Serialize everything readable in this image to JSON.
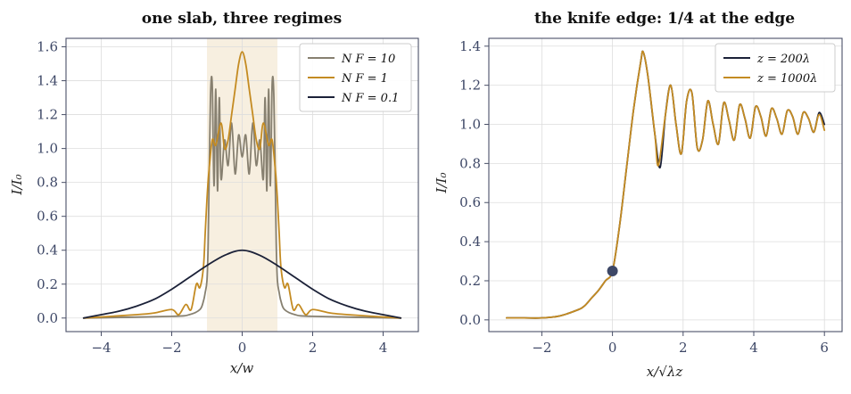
{
  "chart_data": [
    {
      "type": "line",
      "title": "one slab, three regimes",
      "xlabel": "x/w",
      "ylabel": "I/I₀",
      "xlim": [
        -5,
        5
      ],
      "ylim": [
        -0.08,
        1.65
      ],
      "xticks": [
        -4,
        -2,
        0,
        2,
        4
      ],
      "xtick_labels": [
        "−4",
        "−2",
        "0",
        "2",
        "4"
      ],
      "yticks": [
        0.0,
        0.2,
        0.4,
        0.6,
        0.8,
        1.0,
        1.2,
        1.4,
        1.6
      ],
      "ytick_labels": [
        "0.0",
        "0.2",
        "0.4",
        "0.6",
        "0.8",
        "1.0",
        "1.2",
        "1.4",
        "1.6"
      ],
      "shaded_span": [
        -1,
        1
      ],
      "shade_color": "#f7efe0",
      "grid": true,
      "legend_position": "top-right",
      "series": [
        {
          "name": "N_F = 10",
          "label": "N F = 10",
          "color": "#878070",
          "x": [
            -4.5,
            -2.0,
            -1.5,
            -1.2,
            -1.1,
            -1.05,
            -1.0,
            -0.97,
            -0.95,
            -0.9,
            -0.85,
            -0.8,
            -0.75,
            -0.7,
            -0.65,
            -0.6,
            -0.5,
            -0.4,
            -0.3,
            -0.2,
            -0.1,
            0.0,
            0.1,
            0.2,
            0.3,
            0.4,
            0.5,
            0.6,
            0.65,
            0.7,
            0.75,
            0.8,
            0.85,
            0.9,
            0.95,
            0.97,
            1.0,
            1.05,
            1.1,
            1.2,
            1.5,
            2.0,
            4.5
          ],
          "y": [
            0.0,
            0.01,
            0.02,
            0.05,
            0.1,
            0.15,
            0.22,
            0.4,
            0.65,
            1.3,
            1.38,
            0.78,
            1.35,
            0.75,
            1.3,
            0.82,
            1.05,
            0.9,
            1.15,
            0.85,
            1.08,
            0.95,
            1.08,
            0.85,
            1.15,
            0.9,
            1.05,
            0.82,
            1.3,
            0.75,
            1.35,
            0.78,
            1.38,
            1.3,
            0.65,
            0.4,
            0.22,
            0.15,
            0.1,
            0.05,
            0.02,
            0.01,
            0.0
          ]
        },
        {
          "name": "N_F = 1",
          "label": "N F = 1",
          "color": "#c48b22",
          "x": [
            -4.5,
            -3.0,
            -2.5,
            -2.0,
            -1.8,
            -1.6,
            -1.45,
            -1.3,
            -1.2,
            -1.1,
            -1.05,
            -1.0,
            -0.95,
            -0.85,
            -0.75,
            -0.6,
            -0.5,
            -0.4,
            -0.3,
            -0.2,
            -0.1,
            0.0,
            0.1,
            0.2,
            0.3,
            0.4,
            0.5,
            0.6,
            0.75,
            0.85,
            0.95,
            1.0,
            1.05,
            1.1,
            1.2,
            1.3,
            1.45,
            1.6,
            1.8,
            2.0,
            2.5,
            3.0,
            4.5
          ],
          "y": [
            0.0,
            0.02,
            0.03,
            0.05,
            0.02,
            0.08,
            0.05,
            0.2,
            0.18,
            0.3,
            0.5,
            0.7,
            0.85,
            1.05,
            1.02,
            1.15,
            1.0,
            1.05,
            1.2,
            1.35,
            1.5,
            1.57,
            1.5,
            1.35,
            1.2,
            1.05,
            1.0,
            1.15,
            1.02,
            1.05,
            0.85,
            0.7,
            0.5,
            0.3,
            0.18,
            0.2,
            0.05,
            0.08,
            0.02,
            0.05,
            0.03,
            0.02,
            0.0
          ]
        },
        {
          "name": "N_F = 0.1",
          "label": "N F = 0.1",
          "color": "#1b2138",
          "x": [
            -4.5,
            -4.0,
            -3.5,
            -3.0,
            -2.5,
            -2.0,
            -1.5,
            -1.0,
            -0.5,
            0.0,
            0.5,
            1.0,
            1.5,
            2.0,
            2.5,
            3.0,
            3.5,
            4.0,
            4.5
          ],
          "y": [
            0.0,
            0.02,
            0.04,
            0.07,
            0.11,
            0.17,
            0.24,
            0.31,
            0.37,
            0.4,
            0.37,
            0.31,
            0.24,
            0.17,
            0.11,
            0.07,
            0.04,
            0.02,
            0.0
          ]
        }
      ]
    },
    {
      "type": "line",
      "title": "the knife edge: 1/4 at the edge",
      "xlabel": "x/√λz",
      "ylabel": "I/I₀",
      "xlim": [
        -3.5,
        6.5
      ],
      "ylim": [
        -0.06,
        1.44
      ],
      "xticks": [
        -2,
        0,
        2,
        4,
        6
      ],
      "xtick_labels": [
        "−2",
        "0",
        "2",
        "4",
        "6"
      ],
      "yticks": [
        0.0,
        0.2,
        0.4,
        0.6,
        0.8,
        1.0,
        1.2,
        1.4
      ],
      "ytick_labels": [
        "0.0",
        "0.2",
        "0.4",
        "0.6",
        "0.8",
        "1.0",
        "1.2",
        "1.4"
      ],
      "grid": true,
      "legend_position": "top-right",
      "marked_point": {
        "x": 0,
        "y": 0.25,
        "color": "#3d4766"
      },
      "series": [
        {
          "name": "z = 200λ",
          "label": "z = 200λ",
          "color": "#1b2138",
          "x": [
            -3.0,
            -2.5,
            -2.0,
            -1.5,
            -1.0,
            -0.8,
            -0.6,
            -0.4,
            -0.2,
            0.0,
            0.2,
            0.4,
            0.6,
            0.8,
            0.87,
            1.0,
            1.2,
            1.35,
            1.5,
            1.65,
            1.8,
            1.95,
            2.1,
            2.25,
            2.4,
            2.55,
            2.7,
            2.85,
            3.0,
            3.15,
            3.3,
            3.45,
            3.6,
            3.75,
            3.9,
            4.05,
            4.2,
            4.35,
            4.5,
            4.65,
            4.8,
            4.95,
            5.1,
            5.25,
            5.4,
            5.55,
            5.7,
            5.85,
            6.0
          ],
          "y": [
            0.01,
            0.01,
            0.01,
            0.02,
            0.05,
            0.07,
            0.11,
            0.15,
            0.2,
            0.25,
            0.48,
            0.78,
            1.08,
            1.32,
            1.37,
            1.25,
            0.95,
            0.78,
            1.05,
            1.2,
            1.0,
            0.85,
            1.12,
            1.16,
            0.88,
            0.92,
            1.12,
            1.0,
            0.9,
            1.11,
            1.02,
            0.92,
            1.1,
            1.03,
            0.93,
            1.09,
            1.04,
            0.94,
            1.08,
            1.03,
            0.95,
            1.07,
            1.04,
            0.95,
            1.06,
            1.03,
            0.96,
            1.06,
            1.0
          ]
        },
        {
          "name": "z = 1000λ",
          "label": "z = 1000λ",
          "color": "#c48b22",
          "x": [
            -3.0,
            -2.5,
            -2.0,
            -1.5,
            -1.0,
            -0.8,
            -0.6,
            -0.4,
            -0.2,
            0.0,
            0.2,
            0.4,
            0.6,
            0.8,
            0.87,
            1.0,
            1.2,
            1.3,
            1.5,
            1.65,
            1.8,
            1.95,
            2.1,
            2.25,
            2.4,
            2.55,
            2.7,
            2.85,
            3.0,
            3.15,
            3.3,
            3.45,
            3.6,
            3.75,
            3.9,
            4.05,
            4.2,
            4.35,
            4.5,
            4.65,
            4.8,
            4.95,
            5.1,
            5.25,
            5.4,
            5.55,
            5.7,
            5.85,
            6.0
          ],
          "y": [
            0.01,
            0.01,
            0.01,
            0.02,
            0.05,
            0.07,
            0.11,
            0.15,
            0.2,
            0.25,
            0.48,
            0.78,
            1.08,
            1.32,
            1.37,
            1.25,
            0.95,
            0.79,
            1.05,
            1.2,
            1.0,
            0.85,
            1.12,
            1.16,
            0.88,
            0.92,
            1.12,
            1.0,
            0.9,
            1.11,
            1.02,
            0.92,
            1.1,
            1.03,
            0.93,
            1.09,
            1.04,
            0.94,
            1.08,
            1.03,
            0.95,
            1.07,
            1.04,
            0.95,
            1.06,
            1.03,
            0.96,
            1.05,
            0.97
          ]
        }
      ]
    }
  ]
}
